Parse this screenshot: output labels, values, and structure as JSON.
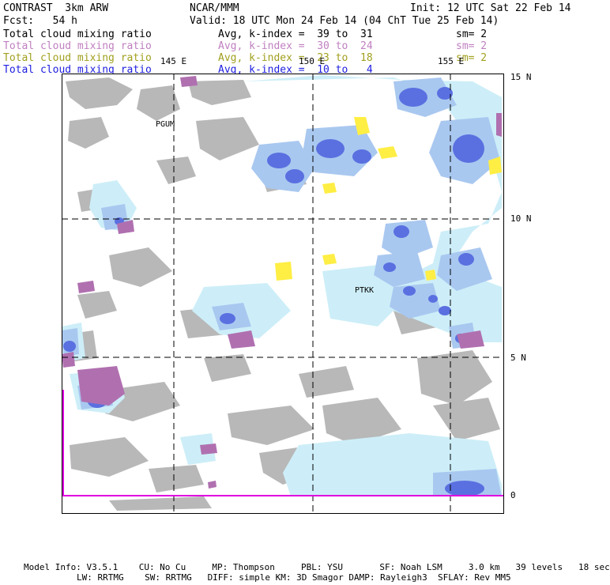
{
  "header": {
    "model": "CONTRAST  3km ARW",
    "center": "NCAR/MMM",
    "init": "Init: 12 UTC Sat 22 Feb 14",
    "fcst": "Fcst:   54 h",
    "valid": "Valid: 18 UTC Mon 24 Feb 14 (04 ChT Tue 25 Feb 14)"
  },
  "legend": [
    {
      "field": "Total cloud mixing ratio",
      "avg": "Avg, k-index =  39 to  31",
      "sm": "sm= 2",
      "color": "#000000"
    },
    {
      "field": "Total cloud mixing ratio",
      "avg": "Avg, k-index =  30 to  24",
      "sm": "sm= 2",
      "color": "#c080c0"
    },
    {
      "field": "Total cloud mixing ratio",
      "avg": "Avg, k-index =  23 to  18",
      "sm": "sm= 2",
      "color": "#a0a020"
    },
    {
      "field": "Total cloud mixing ratio",
      "avg": "Avg, k-index =  10 to   4",
      "sm": "",
      "color": "#2020e0"
    }
  ],
  "map": {
    "lon_labels": [
      "145 E",
      "150 E",
      "155 E"
    ],
    "lat_labels": [
      "15 N",
      "10 N",
      "5 N",
      "0"
    ],
    "stations": [
      "PGUM",
      "PTKK"
    ]
  },
  "footer": {
    "line1": "Model Info: V3.5.1    CU: No Cu     MP: Thompson     PBL: YSU       SF: Noah LSM     3.0 km   39 levels   18 sec",
    "line2": "LW: RRTMG    SW: RRTMG   DIFF: simple KM: 3D Smagor DAMP: Rayleigh3  SFLAY: Rev MM5"
  }
}
